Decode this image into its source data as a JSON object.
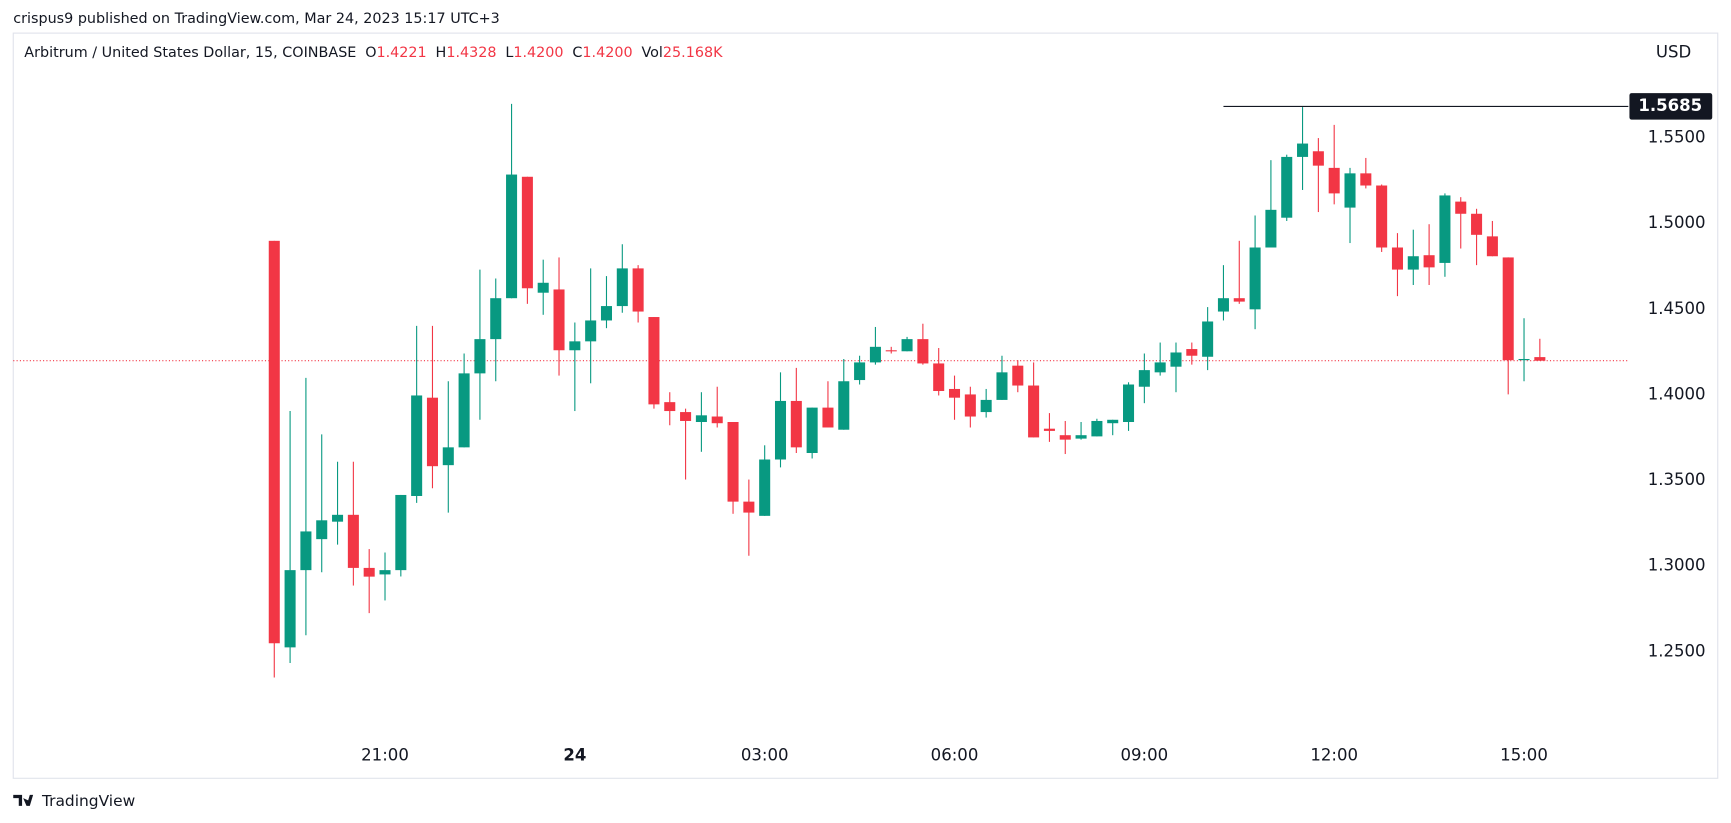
{
  "header": {
    "published": "crispus9 published on TradingView.com, Mar 24, 2023 15:17 UTC+3",
    "footer": "TradingView"
  },
  "chart_data": {
    "type": "candlestick",
    "title": "Arbitrum / United States Dollar, 15, COINBASE",
    "legend": [
      {
        "label": "O",
        "value": "1.4221"
      },
      {
        "label": "H",
        "value": "1.4328"
      },
      {
        "label": "L",
        "value": "1.4200"
      },
      {
        "label": "C",
        "value": "1.4200"
      },
      {
        "label": "Vol",
        "value": "25.168K"
      }
    ],
    "y_axis_label": "USD",
    "up_color": "#089981",
    "down_color": "#f23645",
    "categories": [
      null,
      null,
      null,
      null,
      null,
      null,
      null,
      "21:00",
      null,
      null,
      null,
      null,
      null,
      null,
      null,
      null,
      null,
      null,
      null,
      "24",
      null,
      null,
      null,
      null,
      null,
      null,
      null,
      null,
      null,
      null,
      null,
      "03:00",
      null,
      null,
      null,
      null,
      null,
      null,
      null,
      null,
      null,
      null,
      null,
      "06:00",
      null,
      null,
      null,
      null,
      null,
      null,
      null,
      null,
      null,
      null,
      null,
      "09:00",
      null,
      null,
      null,
      null,
      null,
      null,
      null,
      null,
      null,
      null,
      null,
      "12:00",
      null,
      null,
      null,
      null,
      null,
      null,
      null,
      null,
      null,
      null,
      null,
      "15:00",
      null
    ],
    "open": [
      1.49,
      1.2526,
      1.2977,
      1.3158,
      1.326,
      1.33,
      1.299,
      1.2952,
      1.2977,
      1.341,
      1.3984,
      1.359,
      1.3694,
      1.4126,
      1.4326,
      1.4565,
      1.5274,
      1.4597,
      1.4616,
      1.4261,
      1.4313,
      1.4435,
      1.4519,
      1.4739,
      1.4455,
      1.3958,
      1.39,
      1.3842,
      1.3874,
      1.3842,
      1.3377,
      1.3294,
      1.3623,
      1.3965,
      1.3661,
      1.3926,
      1.3797,
      1.4087,
      1.419,
      1.4261,
      1.4255,
      1.4326,
      1.4184,
      1.4035,
      1.4003,
      1.39,
      1.3971,
      1.4171,
      1.4055,
      1.3803,
      1.3765,
      1.3745,
      1.3758,
      1.3835,
      1.3842,
      1.4048,
      1.4132,
      1.4165,
      1.4268,
      1.4223,
      1.4487,
      1.4565,
      1.45,
      1.4861,
      1.5035,
      1.539,
      1.5423,
      1.5326,
      1.5094,
      1.5294,
      1.5223,
      1.4861,
      1.4732,
      1.4816,
      1.4771,
      1.5129,
      1.5058,
      1.4926,
      1.4803,
      1.4203,
      1.4221
    ],
    "high": [
      1.49,
      1.3906,
      1.41,
      1.377,
      1.361,
      1.361,
      1.31,
      1.308,
      1.3416,
      1.4403,
      1.4403,
      1.408,
      1.4242,
      1.4732,
      1.468,
      1.57,
      1.5274,
      1.479,
      1.4803,
      1.4423,
      1.4739,
      1.4694,
      1.488,
      1.4758,
      1.4455,
      1.4016,
      1.392,
      1.4016,
      1.4048,
      1.3842,
      1.3506,
      1.3706,
      1.4132,
      1.4158,
      1.3926,
      1.408,
      1.421,
      1.4229,
      1.4397,
      1.4281,
      1.4339,
      1.4416,
      1.4274,
      1.4113,
      1.4048,
      1.4035,
      1.4229,
      1.4203,
      1.419,
      1.3894,
      1.3848,
      1.3842,
      1.3861,
      1.3855,
      1.4074,
      1.4242,
      1.4306,
      1.4306,
      1.4306,
      1.4513,
      1.4758,
      1.49,
      1.5048,
      1.5371,
      1.5403,
      1.5681,
      1.55,
      1.5577,
      1.5326,
      1.5384,
      1.5229,
      1.4945,
      1.4965,
      1.4997,
      1.5177,
      1.5155,
      1.5087,
      1.5016,
      1.4803,
      1.4448,
      1.4328
    ],
    "low": [
      1.235,
      1.2435,
      1.2597,
      1.2965,
      1.3126,
      1.2887,
      1.2726,
      1.28,
      1.294,
      1.337,
      1.3455,
      1.3313,
      1.3694,
      1.3855,
      1.408,
      1.4565,
      1.4532,
      1.4468,
      1.4113,
      1.3906,
      1.4068,
      1.439,
      1.448,
      1.4423,
      1.392,
      1.3823,
      1.3506,
      1.3668,
      1.381,
      1.3306,
      1.3061,
      1.3294,
      1.3577,
      1.3661,
      1.3629,
      1.381,
      1.3797,
      1.4061,
      1.4177,
      1.4242,
      1.4255,
      1.4177,
      1.3997,
      1.3855,
      1.381,
      1.3868,
      1.3971,
      1.4016,
      1.3752,
      1.3726,
      1.3655,
      1.3739,
      1.3758,
      1.3765,
      1.379,
      1.3952,
      1.4113,
      1.4016,
      1.4177,
      1.4145,
      1.4435,
      1.4532,
      1.4384,
      1.4861,
      1.5016,
      1.5197,
      1.5068,
      1.5113,
      1.4887,
      1.5206,
      1.4835,
      1.4577,
      1.4642,
      1.4642,
      1.469,
      1.4855,
      1.4758,
      1.481,
      1.4003,
      1.408,
      1.42
    ],
    "close": [
      1.255,
      1.2977,
      1.3203,
      1.3268,
      1.33,
      1.299,
      1.2939,
      1.2977,
      1.3416,
      1.3997,
      1.3584,
      1.3694,
      1.4126,
      1.4326,
      1.4565,
      1.5287,
      1.4623,
      1.4655,
      1.4261,
      1.4313,
      1.4435,
      1.4519,
      1.4739,
      1.4487,
      1.3945,
      1.3906,
      1.3848,
      1.3881,
      1.3835,
      1.3377,
      1.3313,
      1.3623,
      1.3965,
      1.3694,
      1.3926,
      1.381,
      1.408,
      1.419,
      1.4281,
      1.4255,
      1.4326,
      1.4184,
      1.4023,
      1.3984,
      1.3874,
      1.3971,
      1.4132,
      1.4055,
      1.3752,
      1.379,
      1.3739,
      1.3765,
      1.3848,
      1.3855,
      1.4061,
      1.4145,
      1.419,
      1.4248,
      1.4229,
      1.4429,
      1.4565,
      1.4545,
      1.4861,
      1.5081,
      1.539,
      1.5468,
      1.5339,
      1.5177,
      1.5294,
      1.5223,
      1.4861,
      1.4732,
      1.481,
      1.4745,
      1.5165,
      1.5058,
      1.4935,
      1.481,
      1.4203,
      1.421,
      1.42
    ],
    "ylim": [
      1.2,
      1.61
    ],
    "yticks": [
      {
        "value": 1.25,
        "label": "1.2500"
      },
      {
        "value": 1.3,
        "label": "1.3000"
      },
      {
        "value": 1.35,
        "label": "1.3500"
      },
      {
        "value": 1.4,
        "label": "1.4000"
      },
      {
        "value": 1.45,
        "label": "1.4500"
      },
      {
        "value": 1.5,
        "label": "1.5000"
      },
      {
        "value": 1.55,
        "label": "1.5500"
      }
    ],
    "high_line": {
      "value": 1.5685,
      "label": "1.5685"
    },
    "grid": false
  }
}
